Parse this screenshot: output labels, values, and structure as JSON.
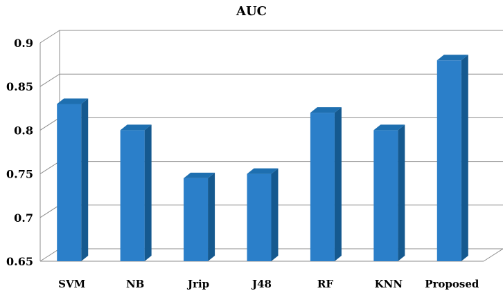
{
  "chart_data": {
    "type": "bar",
    "title": "AUC",
    "categories": [
      "SVM",
      "NB",
      "Jrip",
      "J48",
      "RF",
      "KNN",
      "Proposed"
    ],
    "values": [
      0.83,
      0.8,
      0.745,
      0.75,
      0.82,
      0.8,
      0.88
    ],
    "ylim": [
      0.65,
      0.9
    ],
    "yticks": [
      "0.65",
      "0.7",
      "0.75",
      "0.8",
      "0.85",
      "0.9"
    ],
    "xlabel": "",
    "ylabel": "",
    "grid": true,
    "legend": "none",
    "colors": {
      "front": "#2b7fc9",
      "side": "#15598f",
      "top": "#1e6fb0"
    }
  }
}
